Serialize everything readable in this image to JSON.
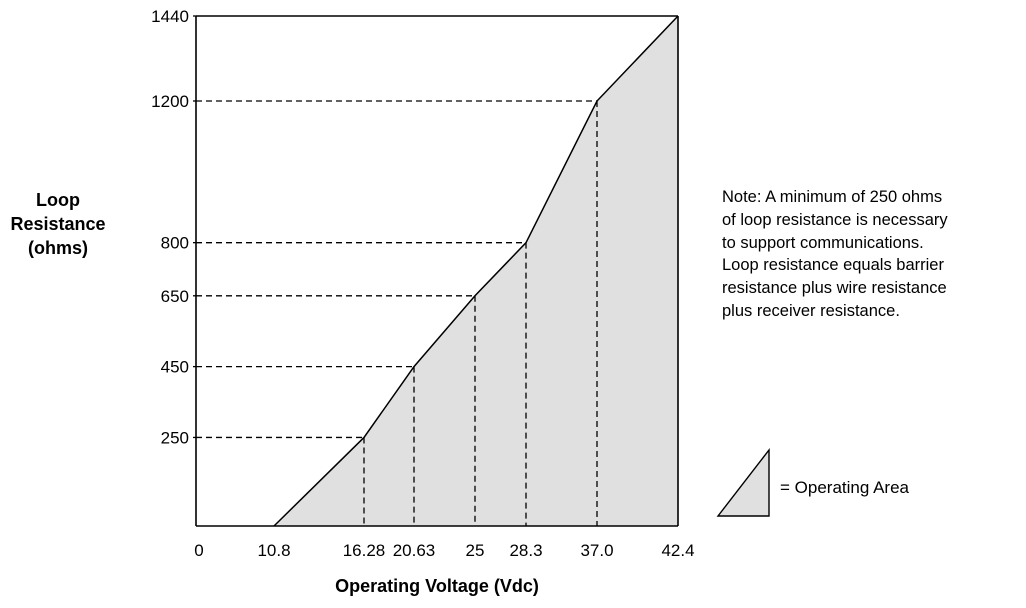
{
  "chart_data": {
    "type": "area",
    "xlabel": "Operating Voltage (Vdc)",
    "ylabel_lines": [
      "Loop",
      "Resistance",
      "(ohms)"
    ],
    "x_ticks": [
      "0",
      "10.8",
      "16.28",
      "20.63",
      "25",
      "28.3",
      "37.0",
      "42.4"
    ],
    "y_ticks": [
      "250",
      "450",
      "650",
      "800",
      "1200",
      "1440"
    ],
    "ylim": [
      0,
      1440
    ],
    "grid": false,
    "series": [
      {
        "x": [
          10.8,
          16.28,
          20.63,
          25,
          28.3,
          37.0,
          42.4
        ],
        "y": [
          0,
          250,
          450,
          650,
          800,
          1200,
          1440
        ]
      }
    ],
    "reference_points": [
      {
        "x": "16.28",
        "y": "250"
      },
      {
        "x": "20.63",
        "y": "450"
      },
      {
        "x": "25",
        "y": "650"
      },
      {
        "x": "28.3",
        "y": "800"
      },
      {
        "x": "37.0",
        "y": "1200"
      }
    ],
    "fill_color": "#e0e0e0",
    "line_color": "#000000"
  },
  "note_lines": [
    "Note: A minimum of 250 ohms",
    "of loop resistance is necessary",
    "to support communications.",
    "Loop resistance equals barrier",
    "resistance plus wire resistance",
    "plus receiver resistance."
  ],
  "legend": {
    "label": "= Operating Area"
  }
}
